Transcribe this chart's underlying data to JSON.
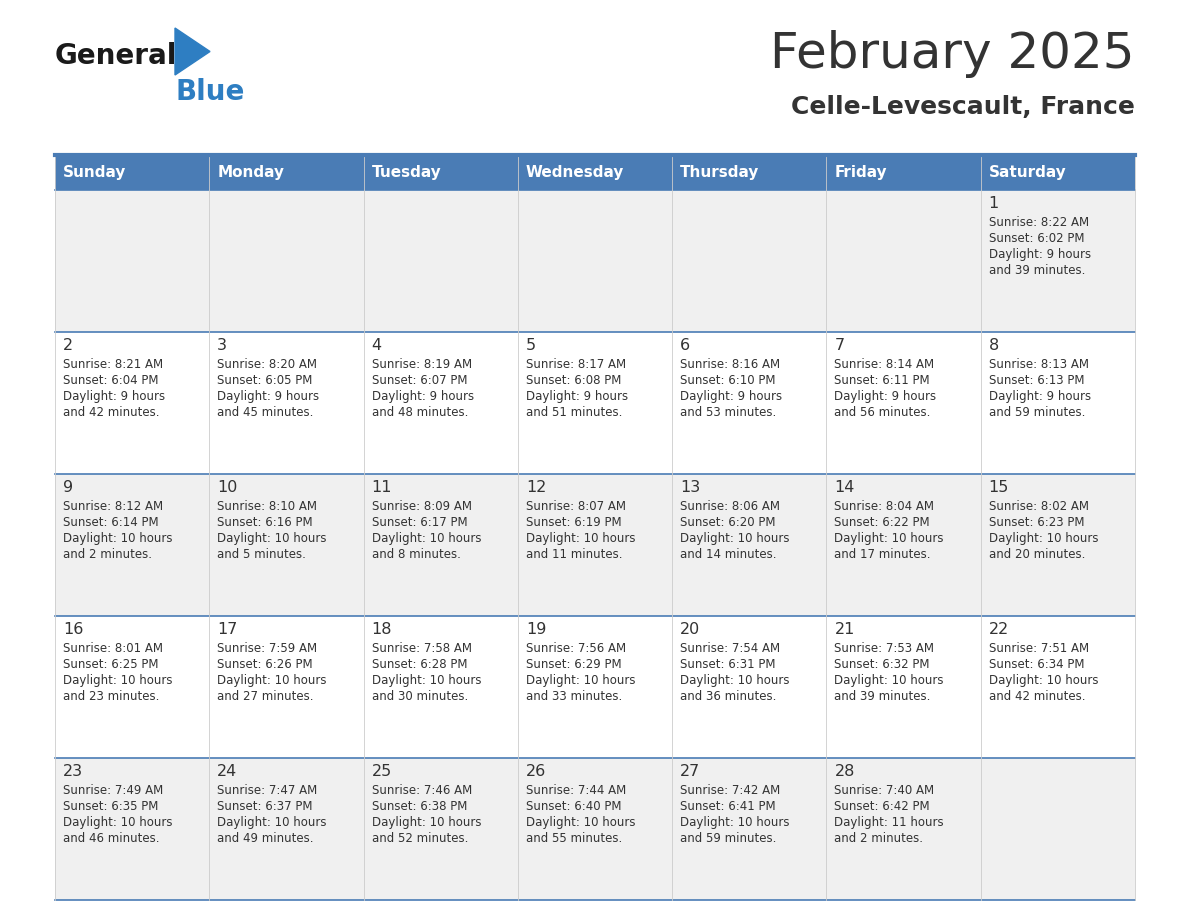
{
  "title": "February 2025",
  "subtitle": "Celle-Levescault, France",
  "days_of_week": [
    "Sunday",
    "Monday",
    "Tuesday",
    "Wednesday",
    "Thursday",
    "Friday",
    "Saturday"
  ],
  "header_bg": "#4a7cb5",
  "header_text_color": "#ffffff",
  "cell_bg_odd": "#f0f0f0",
  "cell_bg_even": "#ffffff",
  "text_color": "#333333",
  "line_color": "#4a7cb5",
  "logo_general_color": "#1a1a1a",
  "logo_blue_color": "#2e7ec2",
  "calendar_data": [
    {
      "day": 1,
      "col": 6,
      "row": 0,
      "sunrise": "8:22 AM",
      "sunset": "6:02 PM",
      "daylight": "9 hours and 39 minutes."
    },
    {
      "day": 2,
      "col": 0,
      "row": 1,
      "sunrise": "8:21 AM",
      "sunset": "6:04 PM",
      "daylight": "9 hours and 42 minutes."
    },
    {
      "day": 3,
      "col": 1,
      "row": 1,
      "sunrise": "8:20 AM",
      "sunset": "6:05 PM",
      "daylight": "9 hours and 45 minutes."
    },
    {
      "day": 4,
      "col": 2,
      "row": 1,
      "sunrise": "8:19 AM",
      "sunset": "6:07 PM",
      "daylight": "9 hours and 48 minutes."
    },
    {
      "day": 5,
      "col": 3,
      "row": 1,
      "sunrise": "8:17 AM",
      "sunset": "6:08 PM",
      "daylight": "9 hours and 51 minutes."
    },
    {
      "day": 6,
      "col": 4,
      "row": 1,
      "sunrise": "8:16 AM",
      "sunset": "6:10 PM",
      "daylight": "9 hours and 53 minutes."
    },
    {
      "day": 7,
      "col": 5,
      "row": 1,
      "sunrise": "8:14 AM",
      "sunset": "6:11 PM",
      "daylight": "9 hours and 56 minutes."
    },
    {
      "day": 8,
      "col": 6,
      "row": 1,
      "sunrise": "8:13 AM",
      "sunset": "6:13 PM",
      "daylight": "9 hours and 59 minutes."
    },
    {
      "day": 9,
      "col": 0,
      "row": 2,
      "sunrise": "8:12 AM",
      "sunset": "6:14 PM",
      "daylight": "10 hours and 2 minutes."
    },
    {
      "day": 10,
      "col": 1,
      "row": 2,
      "sunrise": "8:10 AM",
      "sunset": "6:16 PM",
      "daylight": "10 hours and 5 minutes."
    },
    {
      "day": 11,
      "col": 2,
      "row": 2,
      "sunrise": "8:09 AM",
      "sunset": "6:17 PM",
      "daylight": "10 hours and 8 minutes."
    },
    {
      "day": 12,
      "col": 3,
      "row": 2,
      "sunrise": "8:07 AM",
      "sunset": "6:19 PM",
      "daylight": "10 hours and 11 minutes."
    },
    {
      "day": 13,
      "col": 4,
      "row": 2,
      "sunrise": "8:06 AM",
      "sunset": "6:20 PM",
      "daylight": "10 hours and 14 minutes."
    },
    {
      "day": 14,
      "col": 5,
      "row": 2,
      "sunrise": "8:04 AM",
      "sunset": "6:22 PM",
      "daylight": "10 hours and 17 minutes."
    },
    {
      "day": 15,
      "col": 6,
      "row": 2,
      "sunrise": "8:02 AM",
      "sunset": "6:23 PM",
      "daylight": "10 hours and 20 minutes."
    },
    {
      "day": 16,
      "col": 0,
      "row": 3,
      "sunrise": "8:01 AM",
      "sunset": "6:25 PM",
      "daylight": "10 hours and 23 minutes."
    },
    {
      "day": 17,
      "col": 1,
      "row": 3,
      "sunrise": "7:59 AM",
      "sunset": "6:26 PM",
      "daylight": "10 hours and 27 minutes."
    },
    {
      "day": 18,
      "col": 2,
      "row": 3,
      "sunrise": "7:58 AM",
      "sunset": "6:28 PM",
      "daylight": "10 hours and 30 minutes."
    },
    {
      "day": 19,
      "col": 3,
      "row": 3,
      "sunrise": "7:56 AM",
      "sunset": "6:29 PM",
      "daylight": "10 hours and 33 minutes."
    },
    {
      "day": 20,
      "col": 4,
      "row": 3,
      "sunrise": "7:54 AM",
      "sunset": "6:31 PM",
      "daylight": "10 hours and 36 minutes."
    },
    {
      "day": 21,
      "col": 5,
      "row": 3,
      "sunrise": "7:53 AM",
      "sunset": "6:32 PM",
      "daylight": "10 hours and 39 minutes."
    },
    {
      "day": 22,
      "col": 6,
      "row": 3,
      "sunrise": "7:51 AM",
      "sunset": "6:34 PM",
      "daylight": "10 hours and 42 minutes."
    },
    {
      "day": 23,
      "col": 0,
      "row": 4,
      "sunrise": "7:49 AM",
      "sunset": "6:35 PM",
      "daylight": "10 hours and 46 minutes."
    },
    {
      "day": 24,
      "col": 1,
      "row": 4,
      "sunrise": "7:47 AM",
      "sunset": "6:37 PM",
      "daylight": "10 hours and 49 minutes."
    },
    {
      "day": 25,
      "col": 2,
      "row": 4,
      "sunrise": "7:46 AM",
      "sunset": "6:38 PM",
      "daylight": "10 hours and 52 minutes."
    },
    {
      "day": 26,
      "col": 3,
      "row": 4,
      "sunrise": "7:44 AM",
      "sunset": "6:40 PM",
      "daylight": "10 hours and 55 minutes."
    },
    {
      "day": 27,
      "col": 4,
      "row": 4,
      "sunrise": "7:42 AM",
      "sunset": "6:41 PM",
      "daylight": "10 hours and 59 minutes."
    },
    {
      "day": 28,
      "col": 5,
      "row": 4,
      "sunrise": "7:40 AM",
      "sunset": "6:42 PM",
      "daylight": "11 hours and 2 minutes."
    }
  ]
}
